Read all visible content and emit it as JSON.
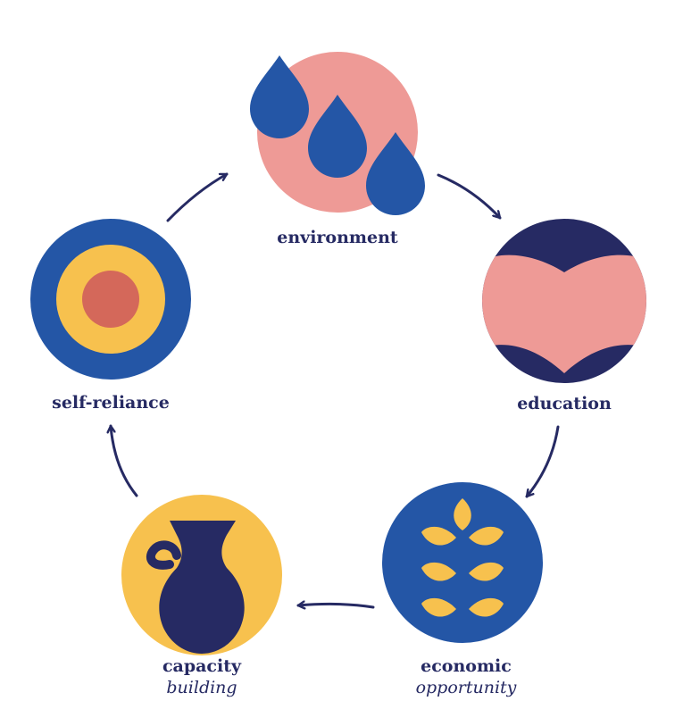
{
  "colors": {
    "navy": "#262a63",
    "blue": "#2456a6",
    "pink": "#ee9a96",
    "yellow": "#f7c14e",
    "coral": "#d4685a",
    "label": "#262a63"
  },
  "nodes": [
    {
      "id": "environment",
      "label": "environment",
      "sublabel": "",
      "icon": "water-drops-icon"
    },
    {
      "id": "education",
      "label": "education",
      "sublabel": "",
      "icon": "open-book-icon"
    },
    {
      "id": "economic",
      "label": "economic",
      "sublabel": "opportunity",
      "icon": "wheat-stalk-icon"
    },
    {
      "id": "capacity",
      "label": "capacity",
      "sublabel": "building",
      "icon": "jug-icon"
    },
    {
      "id": "self_reliance",
      "label": "self-reliance",
      "sublabel": "",
      "icon": "target-icon"
    }
  ],
  "cycle": [
    "environment",
    "education",
    "economic",
    "capacity",
    "self_reliance"
  ]
}
